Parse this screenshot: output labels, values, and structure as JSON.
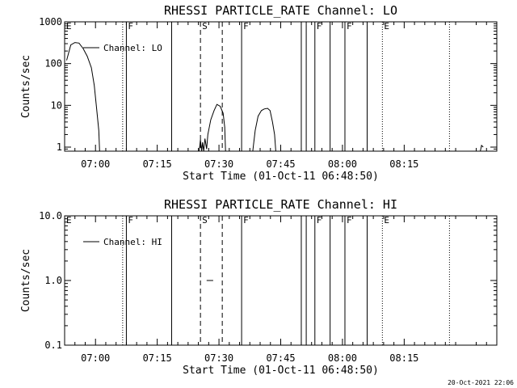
{
  "footer": {
    "timestamp": "20-Oct-2021 22:06"
  },
  "chart_data": [
    {
      "type": "line",
      "title": "RHESSI PARTICLE_RATE Channel: LO",
      "xlabel": "Start Time (01-Oct-11 06:48:50)",
      "ylabel": "Counts/sec",
      "yscale": "log",
      "ylim": [
        0.8,
        1000
      ],
      "xlim_minutes": [
        -7.5,
        97.5
      ],
      "x_tick_labels": [
        "07:00",
        "07:15",
        "07:30",
        "07:45",
        "08:00",
        "08:15"
      ],
      "x_tick_minutes": [
        0,
        15,
        30,
        45,
        60,
        75
      ],
      "y_tick_labels": [
        "1",
        "10",
        "100",
        "1000"
      ],
      "y_tick_values": [
        1,
        10,
        100,
        1000
      ],
      "legend": {
        "entries": [
          "Channel: LO"
        ],
        "placement": "top-left"
      },
      "series": [
        {
          "name": "Channel: LO",
          "segments": [
            [
              [
                -7.0,
                120
              ],
              [
                -6.0,
                280
              ],
              [
                -5.0,
                320
              ],
              [
                -4.0,
                310
              ],
              [
                -3.0,
                230
              ],
              [
                -2.0,
                150
              ],
              [
                -1.0,
                80
              ],
              [
                -0.3,
                30
              ],
              [
                0.3,
                8
              ],
              [
                0.8,
                2.5
              ],
              [
                1.0,
                0.8
              ]
            ],
            [
              [
                25.2,
                0.8
              ],
              [
                25.5,
                1.5
              ],
              [
                25.8,
                0.8
              ],
              [
                26.0,
                1.3
              ],
              [
                26.3,
                0.8
              ],
              [
                26.6,
                1.6
              ],
              [
                27.0,
                0.9
              ],
              [
                27.3,
                2.0
              ],
              [
                28.0,
                4.5
              ],
              [
                28.8,
                7.5
              ],
              [
                29.5,
                10.5
              ],
              [
                30.3,
                9.5
              ],
              [
                31.0,
                6.5
              ],
              [
                31.4,
                3.0
              ],
              [
                31.6,
                0.8
              ]
            ],
            [
              [
                38.2,
                0.8
              ],
              [
                38.8,
                2.5
              ],
              [
                39.5,
                5.5
              ],
              [
                40.3,
                7.5
              ],
              [
                41.0,
                8.2
              ],
              [
                41.8,
                8.5
              ],
              [
                42.4,
                7.5
              ],
              [
                43.0,
                4.0
              ],
              [
                43.5,
                2.0
              ],
              [
                43.8,
                0.8
              ]
            ],
            [
              [
                93.5,
                0.8
              ],
              [
                93.8,
                1.1
              ],
              [
                94.2,
                1.0
              ]
            ]
          ]
        }
      ],
      "event_markers": [
        {
          "label": "E",
          "minute": -7.5,
          "style": "solid"
        },
        {
          "label": "",
          "minute": 6.6,
          "style": "dotted"
        },
        {
          "label": "F",
          "minute": 7.5,
          "style": "solid"
        },
        {
          "label": "",
          "minute": 18.5,
          "style": "solid"
        },
        {
          "label": "S",
          "minute": 25.5,
          "style": "dashed"
        },
        {
          "label": "",
          "minute": 30.8,
          "style": "dashed"
        },
        {
          "label": "F",
          "minute": 35.5,
          "style": "solid"
        },
        {
          "label": "",
          "minute": 50.0,
          "style": "solid"
        },
        {
          "label": "",
          "minute": 51.2,
          "style": "solid"
        },
        {
          "label": "F",
          "minute": 53.3,
          "style": "solid"
        },
        {
          "label": "",
          "minute": 57.0,
          "style": "solid"
        },
        {
          "label": "F",
          "minute": 60.6,
          "style": "solid"
        },
        {
          "label": "",
          "minute": 66.0,
          "style": "solid"
        },
        {
          "label": "E",
          "minute": 69.7,
          "style": "dotted"
        },
        {
          "label": "",
          "minute": 86.0,
          "style": "dotted"
        }
      ]
    },
    {
      "type": "line",
      "title": "RHESSI PARTICLE_RATE Channel: HI",
      "xlabel": "Start Time (01-Oct-11 06:48:50)",
      "ylabel": "Counts/sec",
      "yscale": "log",
      "ylim": [
        0.1,
        10
      ],
      "xlim_minutes": [
        -7.5,
        97.5
      ],
      "x_tick_labels": [
        "07:00",
        "07:15",
        "07:30",
        "07:45",
        "08:00",
        "08:15"
      ],
      "x_tick_minutes": [
        0,
        15,
        30,
        45,
        60,
        75
      ],
      "y_tick_labels": [
        "0.1",
        "1.0",
        "10.0"
      ],
      "y_tick_values": [
        0.1,
        1,
        10
      ],
      "legend": {
        "entries": [
          "Channel: HI"
        ],
        "placement": "top-left"
      },
      "series": [
        {
          "name": "Channel: HI",
          "segments": [
            [
              [
                27.0,
                1.0
              ],
              [
                28.6,
                1.0
              ]
            ]
          ]
        }
      ],
      "event_markers": [
        {
          "label": "E",
          "minute": -7.5,
          "style": "solid"
        },
        {
          "label": "",
          "minute": 6.6,
          "style": "dotted"
        },
        {
          "label": "F",
          "minute": 7.5,
          "style": "solid"
        },
        {
          "label": "",
          "minute": 18.5,
          "style": "solid"
        },
        {
          "label": "S",
          "minute": 25.5,
          "style": "dashed"
        },
        {
          "label": "",
          "minute": 30.8,
          "style": "dashed"
        },
        {
          "label": "F",
          "minute": 35.5,
          "style": "solid"
        },
        {
          "label": "",
          "minute": 50.0,
          "style": "solid"
        },
        {
          "label": "",
          "minute": 51.2,
          "style": "solid"
        },
        {
          "label": "F",
          "minute": 53.3,
          "style": "solid"
        },
        {
          "label": "",
          "minute": 57.0,
          "style": "solid"
        },
        {
          "label": "F",
          "minute": 60.6,
          "style": "solid"
        },
        {
          "label": "",
          "minute": 66.0,
          "style": "solid"
        },
        {
          "label": "E",
          "minute": 69.7,
          "style": "dotted"
        },
        {
          "label": "",
          "minute": 86.0,
          "style": "dotted"
        }
      ]
    }
  ]
}
